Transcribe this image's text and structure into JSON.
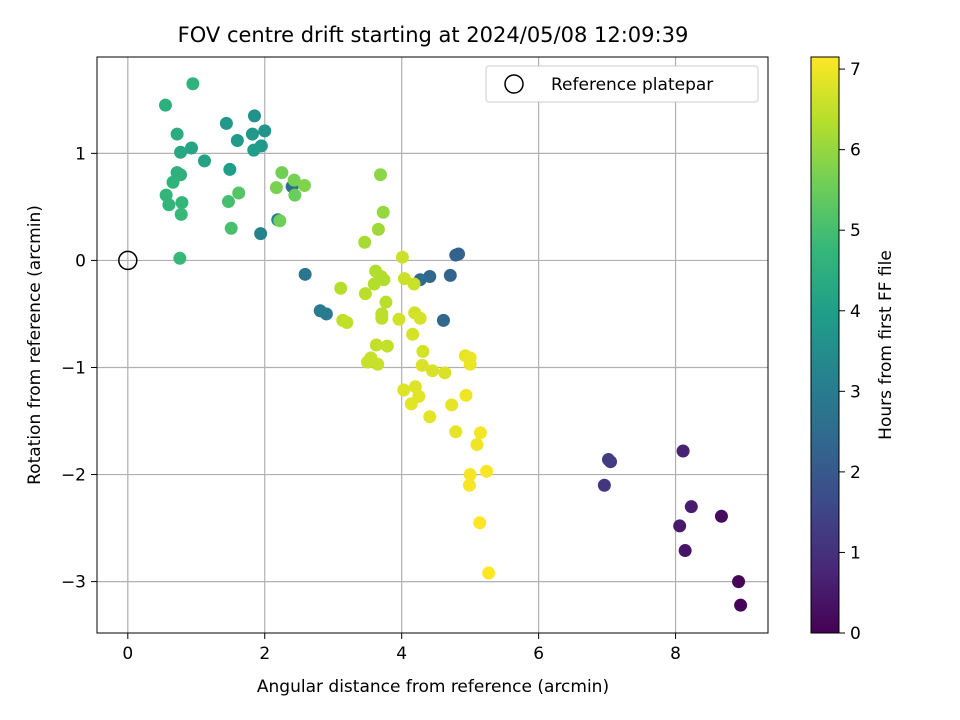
{
  "chart_data": {
    "type": "scatter",
    "title": "FOV centre drift starting at 2024/05/08 12:09:39",
    "xlabel": "Angular distance from reference (arcmin)",
    "ylabel": "Rotation from reference (arcmin)",
    "xlim": [
      -0.45,
      9.35
    ],
    "ylim": [
      -3.48,
      1.9
    ],
    "xticks": [
      0,
      2,
      4,
      6,
      8
    ],
    "yticks": [
      -3,
      -2,
      -1,
      0,
      1
    ],
    "xtick_labels": [
      "0",
      "2",
      "4",
      "6",
      "8"
    ],
    "ytick_labels": [
      "−3",
      "−2",
      "−1",
      "0",
      "1"
    ],
    "grid": true,
    "legend": {
      "placement": "top-right",
      "entries": [
        "Reference platepar"
      ]
    },
    "reference_point": {
      "x": 0,
      "y": 0
    },
    "colorbar": {
      "label": "Hours from first FF file",
      "range": [
        0,
        7.15
      ],
      "ticks": [
        0,
        1,
        2,
        3,
        4,
        5,
        6,
        7
      ],
      "tick_labels": [
        "0",
        "1",
        "2",
        "3",
        "4",
        "5",
        "6",
        "7"
      ],
      "colormap": [
        "#440154",
        "#482878",
        "#3e4989",
        "#31688e",
        "#26828e",
        "#1f9e89",
        "#35b779",
        "#6ece58",
        "#b5de2b",
        "#fde725"
      ]
    },
    "points": [
      {
        "x": 8.95,
        "y": -3.22,
        "c": 0.05
      },
      {
        "x": 8.92,
        "y": -3.0,
        "c": 0.1
      },
      {
        "x": 8.67,
        "y": -2.39,
        "c": 0.2
      },
      {
        "x": 8.14,
        "y": -2.71,
        "c": 0.4
      },
      {
        "x": 8.06,
        "y": -2.48,
        "c": 0.5
      },
      {
        "x": 8.23,
        "y": -2.3,
        "c": 0.6
      },
      {
        "x": 8.11,
        "y": -1.78,
        "c": 0.7
      },
      {
        "x": 6.96,
        "y": -2.1,
        "c": 1.1
      },
      {
        "x": 7.05,
        "y": -1.88,
        "c": 1.2
      },
      {
        "x": 7.02,
        "y": -1.86,
        "c": 1.3
      },
      {
        "x": 4.83,
        "y": 0.06,
        "c": 2.2
      },
      {
        "x": 4.79,
        "y": 0.05,
        "c": 2.25
      },
      {
        "x": 4.71,
        "y": -0.14,
        "c": 2.3
      },
      {
        "x": 4.41,
        "y": -0.15,
        "c": 2.35
      },
      {
        "x": 4.61,
        "y": -0.56,
        "c": 2.4
      },
      {
        "x": 4.27,
        "y": -0.18,
        "c": 2.5
      },
      {
        "x": 2.4,
        "y": 0.69,
        "c": 2.6
      },
      {
        "x": 2.59,
        "y": -0.13,
        "c": 2.8
      },
      {
        "x": 2.9,
        "y": -0.5,
        "c": 2.9
      },
      {
        "x": 2.81,
        "y": -0.47,
        "c": 3.0
      },
      {
        "x": 2.19,
        "y": 0.38,
        "c": 3.05
      },
      {
        "x": 1.94,
        "y": 0.25,
        "c": 3.2
      },
      {
        "x": 1.85,
        "y": 1.35,
        "c": 3.6
      },
      {
        "x": 2.0,
        "y": 1.21,
        "c": 3.7
      },
      {
        "x": 1.82,
        "y": 1.18,
        "c": 3.8
      },
      {
        "x": 1.44,
        "y": 1.28,
        "c": 3.8
      },
      {
        "x": 1.6,
        "y": 1.12,
        "c": 3.9
      },
      {
        "x": 1.95,
        "y": 1.07,
        "c": 3.9
      },
      {
        "x": 1.84,
        "y": 1.03,
        "c": 4.0
      },
      {
        "x": 1.49,
        "y": 0.85,
        "c": 4.0
      },
      {
        "x": 1.12,
        "y": 0.93,
        "c": 4.1
      },
      {
        "x": 0.93,
        "y": 1.05,
        "c": 4.2
      },
      {
        "x": 0.77,
        "y": 1.01,
        "c": 4.3
      },
      {
        "x": 0.72,
        "y": 1.18,
        "c": 4.4
      },
      {
        "x": 0.55,
        "y": 1.45,
        "c": 4.5
      },
      {
        "x": 0.95,
        "y": 1.65,
        "c": 4.6
      },
      {
        "x": 0.72,
        "y": 0.82,
        "c": 4.5
      },
      {
        "x": 0.77,
        "y": 0.8,
        "c": 4.55
      },
      {
        "x": 0.66,
        "y": 0.73,
        "c": 4.6
      },
      {
        "x": 0.56,
        "y": 0.61,
        "c": 4.7
      },
      {
        "x": 0.6,
        "y": 0.52,
        "c": 4.7
      },
      {
        "x": 0.79,
        "y": 0.54,
        "c": 4.75
      },
      {
        "x": 0.78,
        "y": 0.43,
        "c": 4.8
      },
      {
        "x": 0.76,
        "y": 0.02,
        "c": 4.8
      },
      {
        "x": 1.47,
        "y": 0.55,
        "c": 5.0
      },
      {
        "x": 1.51,
        "y": 0.3,
        "c": 5.05
      },
      {
        "x": 1.62,
        "y": 0.63,
        "c": 5.2
      },
      {
        "x": 2.44,
        "y": 0.61,
        "c": 5.5
      },
      {
        "x": 2.22,
        "y": 0.37,
        "c": 5.55
      },
      {
        "x": 2.25,
        "y": 0.82,
        "c": 5.6
      },
      {
        "x": 2.43,
        "y": 0.75,
        "c": 5.65
      },
      {
        "x": 2.17,
        "y": 0.68,
        "c": 5.7
      },
      {
        "x": 2.58,
        "y": 0.7,
        "c": 5.75
      },
      {
        "x": 3.69,
        "y": 0.8,
        "c": 5.9
      },
      {
        "x": 3.73,
        "y": 0.45,
        "c": 6.0
      },
      {
        "x": 3.66,
        "y": 0.29,
        "c": 6.1
      },
      {
        "x": 3.46,
        "y": 0.17,
        "c": 6.2
      },
      {
        "x": 3.62,
        "y": -0.1,
        "c": 6.3
      },
      {
        "x": 3.7,
        "y": -0.15,
        "c": 6.3
      },
      {
        "x": 3.74,
        "y": -0.18,
        "c": 6.3
      },
      {
        "x": 3.6,
        "y": -0.22,
        "c": 6.35
      },
      {
        "x": 3.11,
        "y": -0.26,
        "c": 6.35
      },
      {
        "x": 3.47,
        "y": -0.31,
        "c": 6.4
      },
      {
        "x": 3.77,
        "y": -0.39,
        "c": 6.4
      },
      {
        "x": 3.71,
        "y": -0.5,
        "c": 6.4
      },
      {
        "x": 3.71,
        "y": -0.54,
        "c": 6.45
      },
      {
        "x": 3.14,
        "y": -0.56,
        "c": 6.45
      },
      {
        "x": 3.2,
        "y": -0.58,
        "c": 6.5
      },
      {
        "x": 3.79,
        "y": -0.8,
        "c": 6.5
      },
      {
        "x": 3.63,
        "y": -0.79,
        "c": 6.5
      },
      {
        "x": 3.55,
        "y": -0.91,
        "c": 6.55
      },
      {
        "x": 3.5,
        "y": -0.95,
        "c": 6.55
      },
      {
        "x": 3.65,
        "y": -0.97,
        "c": 6.55
      },
      {
        "x": 4.01,
        "y": 0.03,
        "c": 6.6
      },
      {
        "x": 4.04,
        "y": -0.17,
        "c": 6.6
      },
      {
        "x": 4.18,
        "y": -0.22,
        "c": 6.6
      },
      {
        "x": 3.96,
        "y": -0.55,
        "c": 6.65
      },
      {
        "x": 4.19,
        "y": -0.49,
        "c": 6.65
      },
      {
        "x": 4.27,
        "y": -0.54,
        "c": 6.7
      },
      {
        "x": 4.16,
        "y": -0.69,
        "c": 6.7
      },
      {
        "x": 4.31,
        "y": -0.85,
        "c": 6.7
      },
      {
        "x": 4.3,
        "y": -0.98,
        "c": 6.75
      },
      {
        "x": 4.45,
        "y": -1.03,
        "c": 6.75
      },
      {
        "x": 4.63,
        "y": -1.05,
        "c": 6.75
      },
      {
        "x": 4.03,
        "y": -1.21,
        "c": 6.8
      },
      {
        "x": 4.2,
        "y": -1.18,
        "c": 6.8
      },
      {
        "x": 4.25,
        "y": -1.27,
        "c": 6.85
      },
      {
        "x": 4.14,
        "y": -1.34,
        "c": 6.85
      },
      {
        "x": 4.41,
        "y": -1.46,
        "c": 6.85
      },
      {
        "x": 4.73,
        "y": -1.35,
        "c": 6.9
      },
      {
        "x": 4.79,
        "y": -1.6,
        "c": 6.9
      },
      {
        "x": 4.93,
        "y": -0.89,
        "c": 6.9
      },
      {
        "x": 5.0,
        "y": -0.97,
        "c": 6.95
      },
      {
        "x": 5.0,
        "y": -0.91,
        "c": 6.95
      },
      {
        "x": 4.94,
        "y": -1.26,
        "c": 7.0
      },
      {
        "x": 5.1,
        "y": -1.72,
        "c": 7.0
      },
      {
        "x": 5.15,
        "y": -1.61,
        "c": 7.05
      },
      {
        "x": 5.0,
        "y": -2.0,
        "c": 7.05
      },
      {
        "x": 5.24,
        "y": -1.97,
        "c": 7.1
      },
      {
        "x": 4.99,
        "y": -2.1,
        "c": 7.1
      },
      {
        "x": 5.14,
        "y": -2.45,
        "c": 7.15
      },
      {
        "x": 5.27,
        "y": -2.92,
        "c": 7.15
      }
    ]
  }
}
